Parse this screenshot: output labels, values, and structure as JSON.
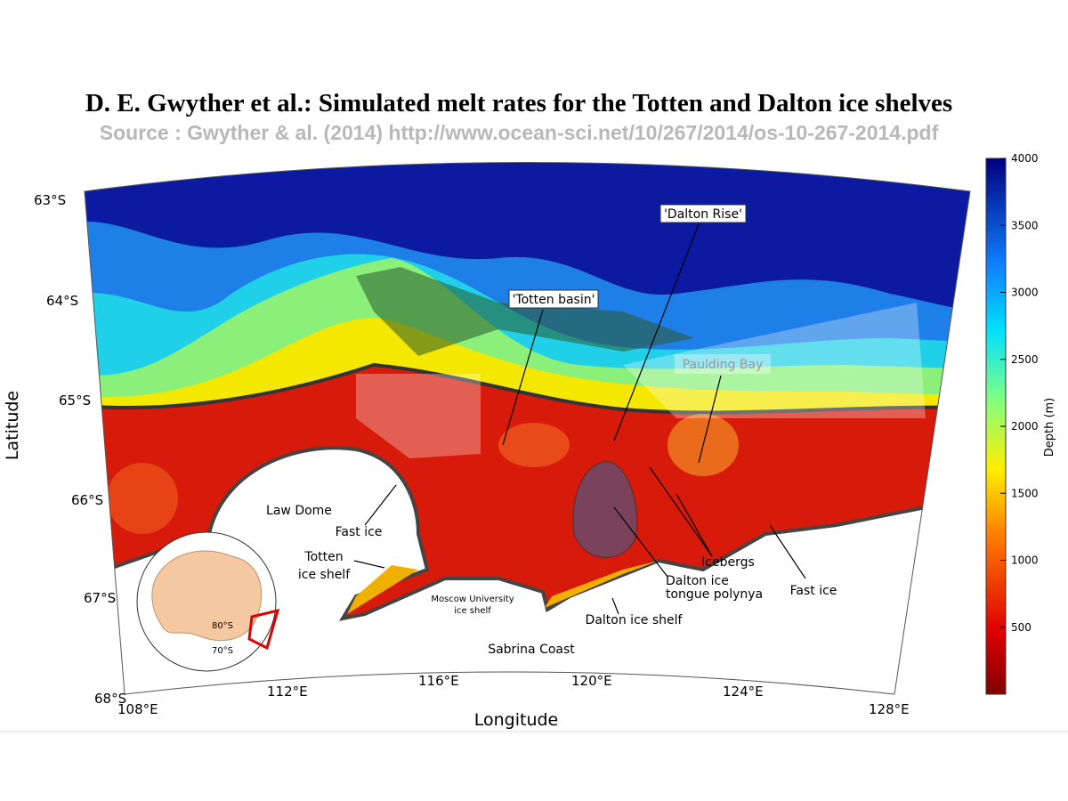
{
  "header": {
    "title": "D. E. Gwyther et al.: Simulated melt rates for the Totten and Dalton ice shelves",
    "source": "Source : Gwyther & al. (2014) http://www.ocean-sci.net/10/267/2014/os-10-267-2014.pdf"
  },
  "map": {
    "x_label": "Longitude",
    "y_label": "Latitude",
    "latitude_labels": [
      "63°S",
      "64°S",
      "65°S",
      "66°S",
      "67°S",
      "68°S"
    ],
    "longitude_labels": [
      "108°E",
      "112°E",
      "116°E",
      "120°E",
      "124°E",
      "128°E"
    ],
    "annotations": [
      "'Dalton Rise'",
      "'Totten basin'",
      "Paulding Bay",
      "Law Dome",
      "Fast ice",
      "Totten",
      "ice shelf",
      "Moscow University",
      "ice shelf",
      "Icebergs",
      "Dalton ice",
      "tongue polynya",
      "Fast ice",
      "Dalton ice shelf",
      "Sabrina Coast"
    ],
    "inset_labels": [
      "80°S",
      "70°S"
    ]
  },
  "colorbar": {
    "label": "Depth (m)",
    "range": [
      0,
      4000
    ],
    "ticks": [
      500,
      1000,
      1500,
      2000,
      2500,
      3000,
      3500,
      4000
    ]
  }
}
